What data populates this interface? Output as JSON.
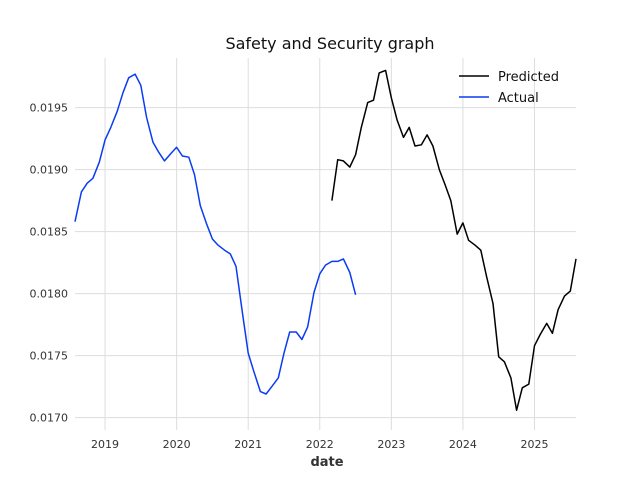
{
  "chart_data": {
    "type": "line",
    "title": "Safety and Security graph",
    "xlabel": "date",
    "ylabel": "",
    "grid": true,
    "legend_position": "top-right",
    "xlim": [
      2018.58,
      2025.58
    ],
    "ylim": [
      0.0169,
      0.0199
    ],
    "x_ticks": [
      {
        "value": 2019,
        "label": "2019"
      },
      {
        "value": 2020,
        "label": "2020"
      },
      {
        "value": 2021,
        "label": "2021"
      },
      {
        "value": 2022,
        "label": "2022"
      },
      {
        "value": 2023,
        "label": "2023"
      },
      {
        "value": 2024,
        "label": "2024"
      },
      {
        "value": 2025,
        "label": "2025"
      }
    ],
    "y_ticks": [
      {
        "value": 0.017,
        "label": "0.0170"
      },
      {
        "value": 0.0175,
        "label": "0.0175"
      },
      {
        "value": 0.018,
        "label": "0.0180"
      },
      {
        "value": 0.0185,
        "label": "0.0185"
      },
      {
        "value": 0.019,
        "label": "0.0190"
      },
      {
        "value": 0.0195,
        "label": "0.0195"
      }
    ],
    "series": [
      {
        "name": "Predicted",
        "color": "#000000",
        "x": [
          2022.17,
          2022.25,
          2022.33,
          2022.42,
          2022.5,
          2022.58,
          2022.67,
          2022.75,
          2022.83,
          2022.92,
          2023.0,
          2023.08,
          2023.17,
          2023.25,
          2023.33,
          2023.42,
          2023.5,
          2023.58,
          2023.67,
          2023.75,
          2023.83,
          2023.92,
          2024.0,
          2024.08,
          2024.17,
          2024.25,
          2024.33,
          2024.42,
          2024.5,
          2024.58,
          2024.67,
          2024.75,
          2024.83,
          2024.92,
          2025.0,
          2025.08,
          2025.17,
          2025.25,
          2025.33,
          2025.42,
          2025.5,
          2025.58
        ],
        "y": [
          0.01875,
          0.01908,
          0.01907,
          0.01902,
          0.01912,
          0.01934,
          0.01954,
          0.01956,
          0.01978,
          0.0198,
          0.01958,
          0.0194,
          0.01926,
          0.01934,
          0.01919,
          0.0192,
          0.01928,
          0.01919,
          0.019,
          0.01888,
          0.01875,
          0.01848,
          0.01857,
          0.01843,
          0.01839,
          0.01835,
          0.01814,
          0.01792,
          0.01749,
          0.01745,
          0.01732,
          0.01706,
          0.01724,
          0.01727,
          0.01758,
          0.01767,
          0.01776,
          0.01768,
          0.01787,
          0.01798,
          0.01802,
          0.01828
        ]
      },
      {
        "name": "Actual",
        "color": "#0a3cf2",
        "x": [
          2018.58,
          2018.67,
          2018.75,
          2018.83,
          2018.92,
          2019.0,
          2019.08,
          2019.17,
          2019.25,
          2019.33,
          2019.42,
          2019.5,
          2019.58,
          2019.67,
          2019.75,
          2019.83,
          2019.92,
          2020.0,
          2020.08,
          2020.17,
          2020.25,
          2020.33,
          2020.42,
          2020.5,
          2020.58,
          2020.67,
          2020.75,
          2020.83,
          2020.92,
          2021.0,
          2021.08,
          2021.17,
          2021.25,
          2021.33,
          2021.42,
          2021.5,
          2021.58,
          2021.67,
          2021.75,
          2021.83,
          2021.92,
          2022.0,
          2022.08,
          2022.17,
          2022.25,
          2022.33,
          2022.42,
          2022.5
        ],
        "y": [
          0.01858,
          0.01882,
          0.01889,
          0.01893,
          0.01906,
          0.01924,
          0.01934,
          0.01947,
          0.01962,
          0.01974,
          0.01977,
          0.01968,
          0.01942,
          0.01922,
          0.01914,
          0.01907,
          0.01913,
          0.01918,
          0.01911,
          0.0191,
          0.01896,
          0.01871,
          0.01856,
          0.01844,
          0.01839,
          0.01835,
          0.01832,
          0.01822,
          0.01784,
          0.01752,
          0.01737,
          0.01721,
          0.01719,
          0.01725,
          0.01732,
          0.01752,
          0.01769,
          0.01769,
          0.01763,
          0.01773,
          0.01801,
          0.01816,
          0.01823,
          0.01826,
          0.01826,
          0.01828,
          0.01817,
          0.01799
        ]
      }
    ]
  }
}
